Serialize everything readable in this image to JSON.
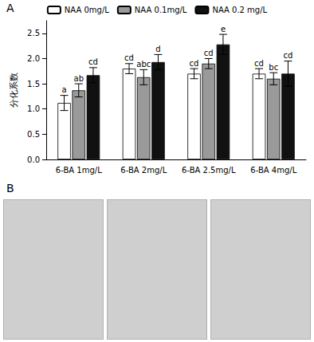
{
  "panel_labels": [
    "A",
    "B"
  ],
  "chart_data": {
    "type": "bar",
    "y_label": "分化系数",
    "categories": [
      "6-BA 1mg/L",
      "6-BA 2mg/L",
      "6-BA 2.5mg/L",
      "6-BA 4mg/L"
    ],
    "series": [
      {
        "name": "NAA 0mg/L",
        "color": "#ffffff",
        "values": [
          1.12,
          1.8,
          1.7,
          1.7
        ],
        "errors": [
          0.15,
          0.1,
          0.1,
          0.1
        ],
        "letters": [
          "a",
          "cd",
          "cd",
          "cd"
        ]
      },
      {
        "name": "NAA 0.1mg/L",
        "color": "#9a9a9a",
        "values": [
          1.37,
          1.63,
          1.9,
          1.6
        ],
        "errors": [
          0.13,
          0.15,
          0.1,
          0.12
        ],
        "letters": [
          "ab",
          "abc",
          "cd",
          "bc"
        ]
      },
      {
        "name": "NAA 0.2 mg/L",
        "color": "#111111",
        "values": [
          1.67,
          1.93,
          2.28,
          1.7
        ],
        "errors": [
          0.15,
          0.15,
          0.2,
          0.25
        ],
        "letters": [
          "cd",
          "d",
          "e",
          "cd"
        ]
      }
    ],
    "ylim": [
      0,
      2.75
    ],
    "yticks": [
      {
        "value": 0,
        "label": "0.0"
      },
      0.5,
      {
        "value": 1,
        "label": "1.0"
      },
      1.5,
      {
        "value": 2,
        "label": "2.0"
      },
      2.5
    ],
    "legend": "top",
    "grid": false
  }
}
